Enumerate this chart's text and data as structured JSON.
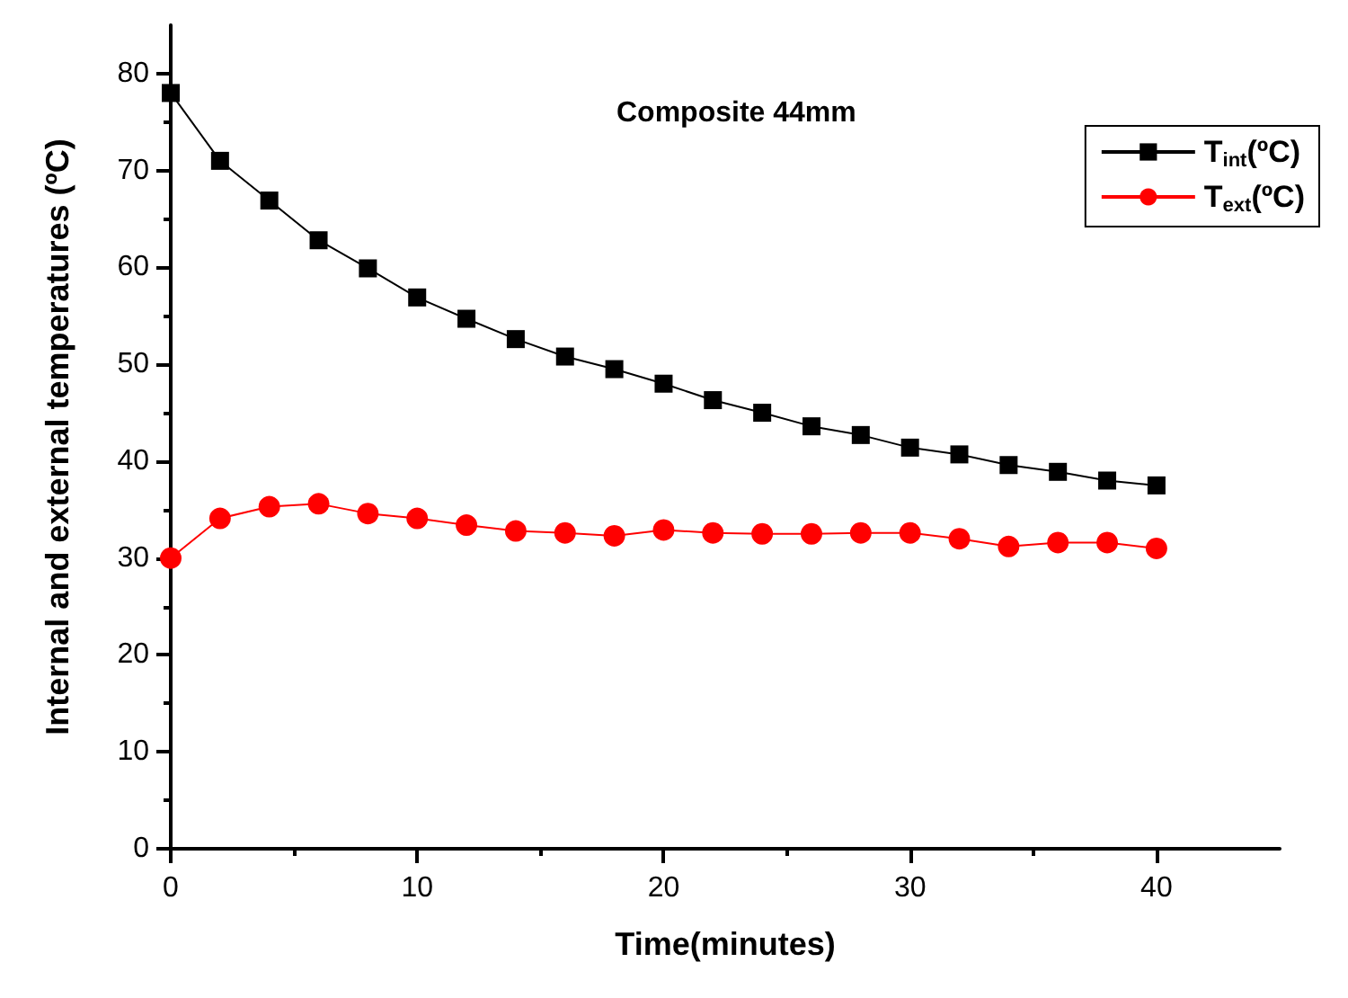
{
  "chart_data": {
    "type": "line",
    "title": "Composite 44mm",
    "xlabel": "Time(minutes)",
    "ylabel": "Internal and external temperatures (ºC)",
    "x": [
      0,
      2,
      4,
      6,
      8,
      10,
      12,
      14,
      16,
      18,
      20,
      22,
      24,
      26,
      28,
      30,
      32,
      34,
      36,
      38,
      40
    ],
    "series": [
      {
        "name": "T$_{int}$(ºC)",
        "color": "#000000",
        "marker": "square",
        "values": [
          78.0,
          71.0,
          66.9,
          62.8,
          59.9,
          56.9,
          54.7,
          52.6,
          50.8,
          49.5,
          48.0,
          46.3,
          45.0,
          43.6,
          42.7,
          41.4,
          40.7,
          39.6,
          38.9,
          38.0,
          37.5
        ]
      },
      {
        "name": "T$_{ext}$(ºC)",
        "color": "#ff0000",
        "marker": "circle",
        "values": [
          30.0,
          34.1,
          35.3,
          35.6,
          34.6,
          34.1,
          33.4,
          32.8,
          32.6,
          32.3,
          32.9,
          32.6,
          32.5,
          32.5,
          32.6,
          32.6,
          32.0,
          31.2,
          31.6,
          31.6,
          31.0
        ]
      }
    ],
    "xlim": [
      0,
      45
    ],
    "xticks": [
      0,
      10,
      20,
      30,
      40
    ],
    "ylim": [
      0,
      85
    ],
    "yticks": [
      0,
      10,
      20,
      30,
      40,
      50,
      60,
      70,
      80
    ],
    "grid": false,
    "legend": "top right",
    "line_style": "solid"
  }
}
